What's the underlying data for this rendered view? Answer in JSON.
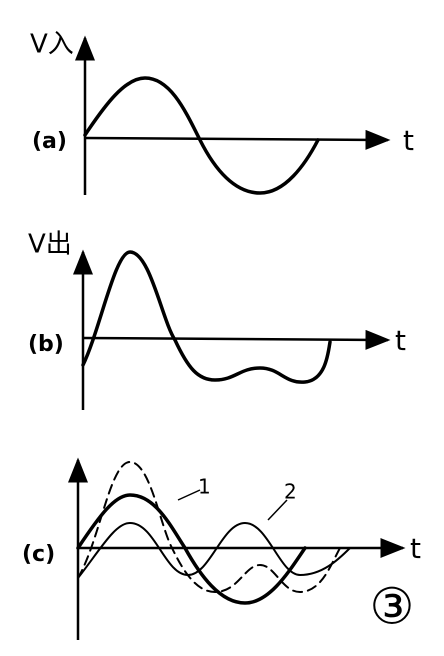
{
  "panels": [
    {
      "label": "(a)",
      "axis_y": "V入",
      "axis_x": "t"
    },
    {
      "label": "(b)",
      "axis_y": "V出",
      "axis_x": "t"
    },
    {
      "label": "(c)",
      "axis_x": "t",
      "curve_labels": [
        "1",
        "2"
      ]
    }
  ],
  "figure_number": "③"
}
